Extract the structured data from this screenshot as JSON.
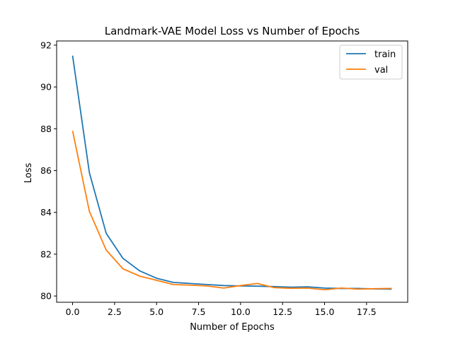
{
  "chart_data": {
    "type": "line",
    "title": "Landmark-VAE Model Loss vs Number of Epochs",
    "xlabel": "Number of Epochs",
    "ylabel": "Loss",
    "xlim": [
      -0.95,
      19.95
    ],
    "ylim": [
      79.7,
      92.2
    ],
    "xticks": [
      0,
      2.5,
      5,
      7.5,
      10,
      12.5,
      15,
      17.5
    ],
    "xtick_labels": [
      "0.0",
      "2.5",
      "5.0",
      "7.5",
      "10.0",
      "12.5",
      "15.0",
      "17.5"
    ],
    "yticks": [
      80,
      82,
      84,
      86,
      88,
      90,
      92
    ],
    "ytick_labels": [
      "80",
      "82",
      "84",
      "86",
      "88",
      "90",
      "92"
    ],
    "grid": false,
    "legend_position": "top-right",
    "x": [
      0,
      1,
      2,
      3,
      4,
      5,
      6,
      7,
      8,
      9,
      10,
      11,
      12,
      13,
      14,
      15,
      16,
      17,
      18,
      19
    ],
    "series": [
      {
        "name": "train",
        "color": "#1f77b4",
        "values": [
          91.5,
          85.9,
          83.0,
          81.8,
          81.2,
          80.85,
          80.65,
          80.6,
          80.55,
          80.5,
          80.48,
          80.47,
          80.45,
          80.42,
          80.44,
          80.38,
          80.36,
          80.36,
          80.34,
          80.33
        ]
      },
      {
        "name": "val",
        "color": "#ff7f0e",
        "values": [
          87.9,
          84.05,
          82.2,
          81.3,
          80.95,
          80.75,
          80.55,
          80.52,
          80.48,
          80.38,
          80.5,
          80.6,
          80.4,
          80.37,
          80.38,
          80.3,
          80.38,
          80.33,
          80.35,
          80.36
        ]
      }
    ]
  }
}
